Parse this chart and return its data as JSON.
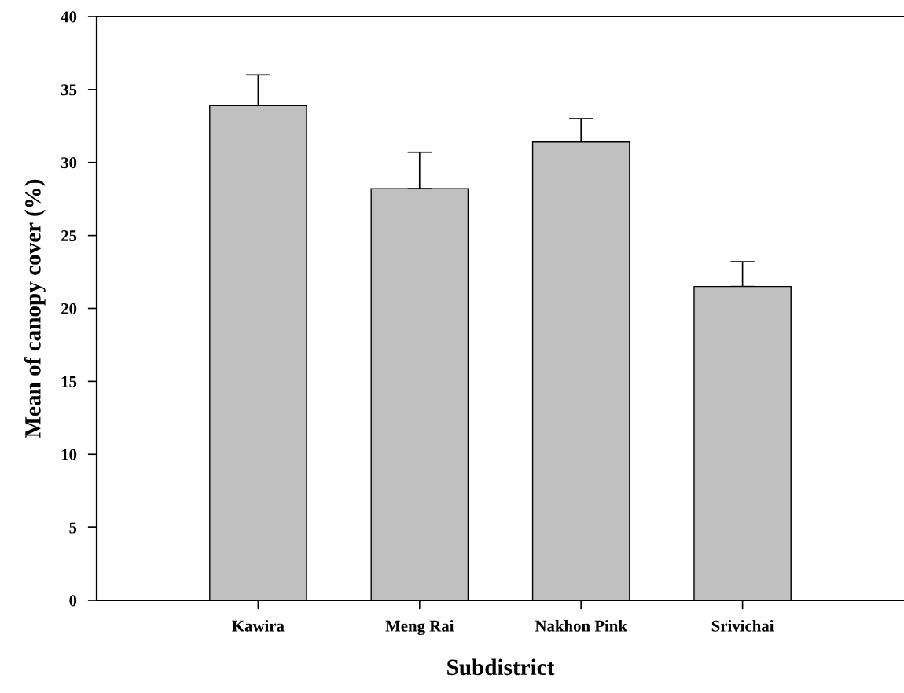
{
  "chart_data": {
    "type": "bar",
    "xlabel": "Subdistrict",
    "ylabel": "Mean of canopy cover (%)",
    "categories": [
      "Kawira",
      "Meng Rai",
      "Nakhon Pink",
      "Srivichai"
    ],
    "values": [
      33.9,
      28.2,
      31.4,
      21.5
    ],
    "errors": [
      [
        33.9,
        36.0
      ],
      [
        28.2,
        30.7
      ],
      [
        31.4,
        33.0
      ],
      [
        21.5,
        23.2
      ]
    ],
    "color": "#c0c0c0",
    "ylim": [
      0,
      40
    ],
    "yticks": [
      0,
      5,
      10,
      15,
      20,
      25,
      30,
      35,
      40
    ],
    "grid": false
  }
}
